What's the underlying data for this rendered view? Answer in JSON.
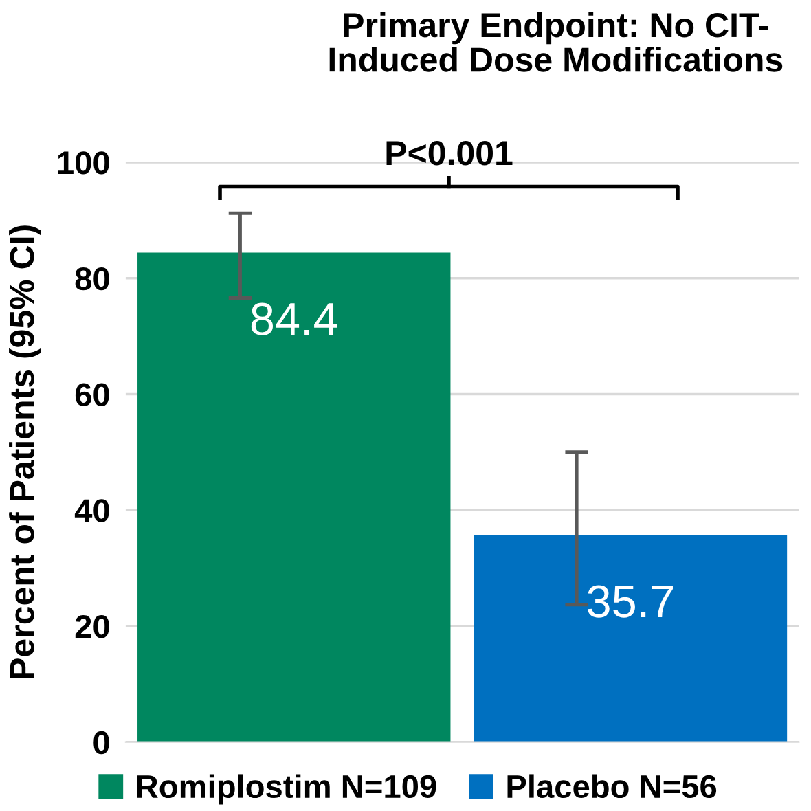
{
  "chart_data": {
    "type": "bar",
    "title": "Primary Endpoint: No CIT-\nInduced Dose Modifications",
    "ylabel": "Percent of Patients (95% CI)",
    "categories": [
      null
    ],
    "series": [
      {
        "name": "Romiplostim N=109",
        "color": "#00875f",
        "values": [
          84.4
        ],
        "errors": [
          [
            76.6,
            91.2
          ]
        ]
      },
      {
        "name": "Placebo N=56",
        "color": "#0070c0",
        "values": [
          35.7
        ],
        "errors": [
          [
            23.7,
            50.0
          ]
        ]
      }
    ],
    "ylim": [
      0,
      100
    ],
    "yticks": [
      0,
      20,
      40,
      60,
      80,
      100
    ],
    "grid": "y",
    "legend": "bottom",
    "data_labels": true,
    "annotations": [
      "P<0.001"
    ]
  }
}
